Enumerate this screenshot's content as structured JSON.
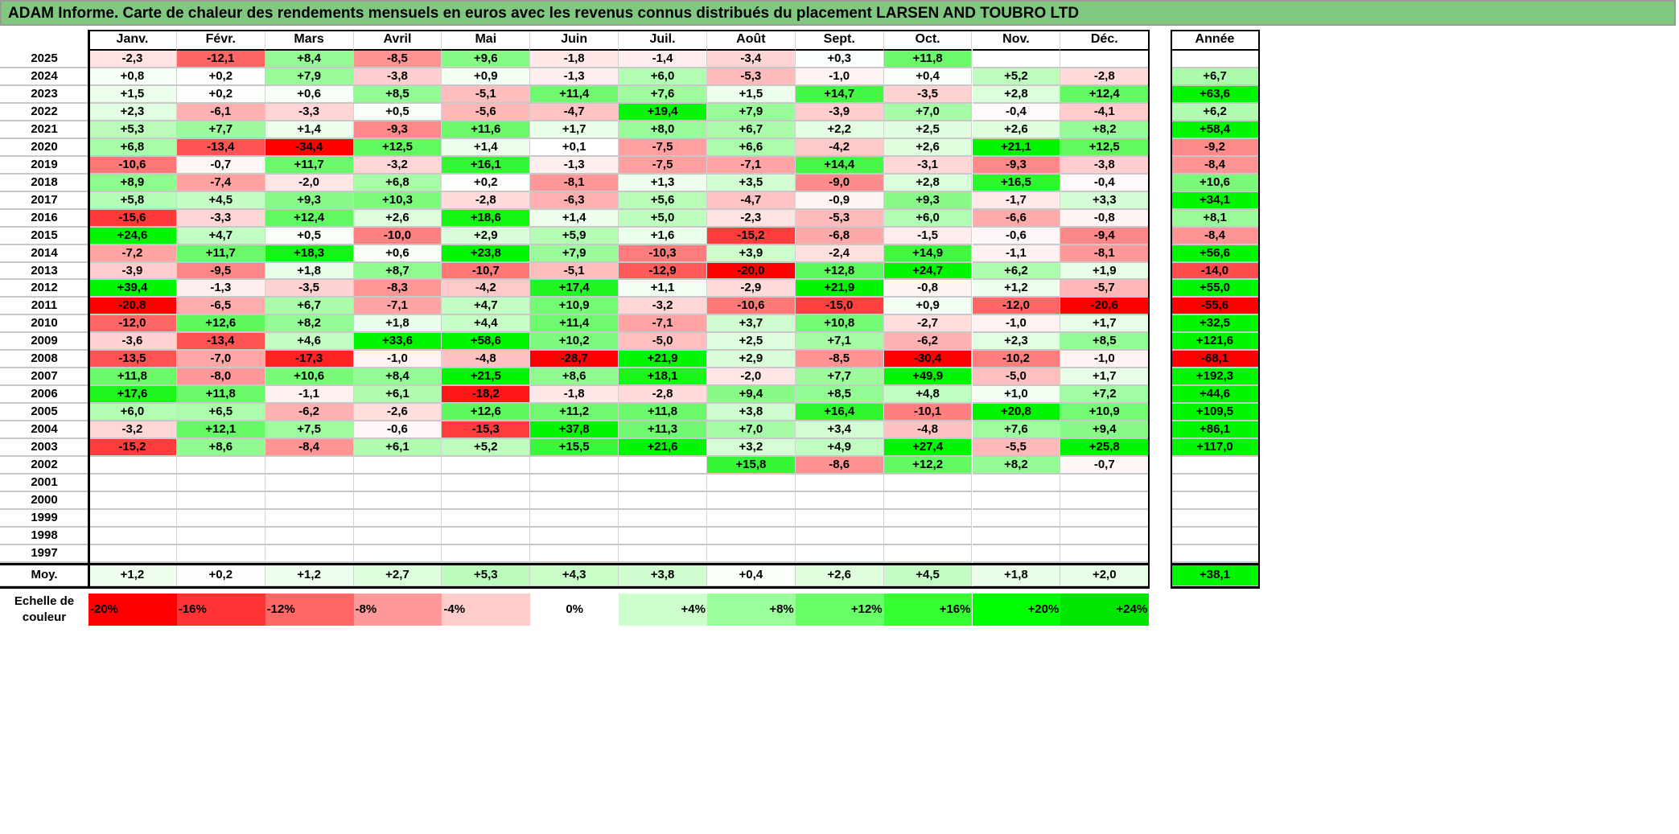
{
  "title": "ADAM Informe. Carte de chaleur des rendements mensuels en euros avec les revenus connus distribués du placement LARSEN AND TOUBRO LTD",
  "chart_data": {
    "type": "heatmap",
    "title": "ADAM Informe. Carte de chaleur des rendements mensuels en euros avec les revenus connus distribués du placement LARSEN AND TOUBRO LTD",
    "months": [
      "Janv.",
      "Févr.",
      "Mars",
      "Avril",
      "Mai",
      "Juin",
      "Juil.",
      "Août",
      "Sept.",
      "Oct.",
      "Nov.",
      "Déc."
    ],
    "annual_header": "Année",
    "rows": [
      {
        "year": "2025",
        "values": [
          "-2,3",
          "-12,1",
          "+8,4",
          "-8,5",
          "+9,6",
          "-1,8",
          "-1,4",
          "-3,4",
          "+0,3",
          "+11,8",
          null,
          null
        ],
        "annual": null
      },
      {
        "year": "2024",
        "values": [
          "+0,8",
          "+0,2",
          "+7,9",
          "-3,8",
          "+0,9",
          "-1,3",
          "+6,0",
          "-5,3",
          "-1,0",
          "+0,4",
          "+5,2",
          "-2,8"
        ],
        "annual": "+6,7"
      },
      {
        "year": "2023",
        "values": [
          "+1,5",
          "+0,2",
          "+0,6",
          "+8,5",
          "-5,1",
          "+11,4",
          "+7,6",
          "+1,5",
          "+14,7",
          "-3,5",
          "+2,8",
          "+12,4"
        ],
        "annual": "+63,6"
      },
      {
        "year": "2022",
        "values": [
          "+2,3",
          "-6,1",
          "-3,3",
          "+0,5",
          "-5,6",
          "-4,7",
          "+19,4",
          "+7,9",
          "-3,9",
          "+7,0",
          "-0,4",
          "-4,1"
        ],
        "annual": "+6,2"
      },
      {
        "year": "2021",
        "values": [
          "+5,3",
          "+7,7",
          "+1,4",
          "-9,3",
          "+11,6",
          "+1,7",
          "+8,0",
          "+6,7",
          "+2,2",
          "+2,5",
          "+2,6",
          "+8,2"
        ],
        "annual": "+58,4"
      },
      {
        "year": "2020",
        "values": [
          "+6,8",
          "-13,4",
          "-34,4",
          "+12,5",
          "+1,4",
          "+0,1",
          "-7,5",
          "+6,6",
          "-4,2",
          "+2,6",
          "+21,1",
          "+12,5"
        ],
        "annual": "-9,2"
      },
      {
        "year": "2019",
        "values": [
          "-10,6",
          "-0,7",
          "+11,7",
          "-3,2",
          "+16,1",
          "-1,3",
          "-7,5",
          "-7,1",
          "+14,4",
          "-3,1",
          "-9,3",
          "-3,8"
        ],
        "annual": "-8,4"
      },
      {
        "year": "2018",
        "values": [
          "+8,9",
          "-7,4",
          "-2,0",
          "+6,8",
          "+0,2",
          "-8,1",
          "+1,3",
          "+3,5",
          "-9,0",
          "+2,8",
          "+16,5",
          "-0,4"
        ],
        "annual": "+10,6"
      },
      {
        "year": "2017",
        "values": [
          "+5,8",
          "+4,5",
          "+9,3",
          "+10,3",
          "-2,8",
          "-6,3",
          "+5,6",
          "-4,7",
          "-0,9",
          "+9,3",
          "-1,7",
          "+3,3"
        ],
        "annual": "+34,1"
      },
      {
        "year": "2016",
        "values": [
          "-15,6",
          "-3,3",
          "+12,4",
          "+2,6",
          "+18,6",
          "+1,4",
          "+5,0",
          "-2,3",
          "-5,3",
          "+6,0",
          "-6,6",
          "-0,8"
        ],
        "annual": "+8,1"
      },
      {
        "year": "2015",
        "values": [
          "+24,6",
          "+4,7",
          "+0,5",
          "-10,0",
          "+2,9",
          "+5,9",
          "+1,6",
          "-15,2",
          "-6,8",
          "-1,5",
          "-0,6",
          "-9,4"
        ],
        "annual": "-8,4"
      },
      {
        "year": "2014",
        "values": [
          "-7,2",
          "+11,7",
          "+18,3",
          "+0,6",
          "+23,8",
          "+7,9",
          "-10,3",
          "+3,9",
          "-2,4",
          "+14,9",
          "-1,1",
          "-8,1"
        ],
        "annual": "+56,6"
      },
      {
        "year": "2013",
        "values": [
          "-3,9",
          "-9,5",
          "+1,8",
          "+8,7",
          "-10,7",
          "-5,1",
          "-12,9",
          "-20,0",
          "+12,8",
          "+24,7",
          "+6,2",
          "+1,9"
        ],
        "annual": "-14,0"
      },
      {
        "year": "2012",
        "values": [
          "+39,4",
          "-1,3",
          "-3,5",
          "-8,3",
          "-4,2",
          "+17,4",
          "+1,1",
          "-2,9",
          "+21,9",
          "-0,8",
          "+1,2",
          "-5,7"
        ],
        "annual": "+55,0"
      },
      {
        "year": "2011",
        "values": [
          "-20,8",
          "-6,5",
          "+6,7",
          "-7,1",
          "+4,7",
          "+10,9",
          "-3,2",
          "-10,6",
          "-15,0",
          "+0,9",
          "-12,0",
          "-20,6"
        ],
        "annual": "-55,6"
      },
      {
        "year": "2010",
        "values": [
          "-12,0",
          "+12,6",
          "+8,2",
          "+1,8",
          "+4,4",
          "+11,4",
          "-7,1",
          "+3,7",
          "+10,8",
          "-2,7",
          "-1,0",
          "+1,7"
        ],
        "annual": "+32,5"
      },
      {
        "year": "2009",
        "values": [
          "-3,6",
          "-13,4",
          "+4,6",
          "+33,6",
          "+58,6",
          "+10,2",
          "-5,0",
          "+2,5",
          "+7,1",
          "-6,2",
          "+2,3",
          "+8,5"
        ],
        "annual": "+121,6"
      },
      {
        "year": "2008",
        "values": [
          "-13,5",
          "-7,0",
          "-17,3",
          "-1,0",
          "-4,8",
          "-28,7",
          "+21,9",
          "+2,9",
          "-8,5",
          "-30,4",
          "-10,2",
          "-1,0"
        ],
        "annual": "-68,1"
      },
      {
        "year": "2007",
        "values": [
          "+11,8",
          "-8,0",
          "+10,6",
          "+8,4",
          "+21,5",
          "+8,6",
          "+18,1",
          "-2,0",
          "+7,7",
          "+49,9",
          "-5,0",
          "+1,7"
        ],
        "annual": "+192,3"
      },
      {
        "year": "2006",
        "values": [
          "+17,6",
          "+11,8",
          "-1,1",
          "+6,1",
          "-18,2",
          "-1,8",
          "-2,8",
          "+9,4",
          "+8,5",
          "+4,8",
          "+1,0",
          "+7,2"
        ],
        "annual": "+44,6"
      },
      {
        "year": "2005",
        "values": [
          "+6,0",
          "+6,5",
          "-6,2",
          "-2,6",
          "+12,6",
          "+11,2",
          "+11,8",
          "+3,8",
          "+16,4",
          "-10,1",
          "+20,8",
          "+10,9"
        ],
        "annual": "+109,5"
      },
      {
        "year": "2004",
        "values": [
          "-3,2",
          "+12,1",
          "+7,5",
          "-0,6",
          "-15,3",
          "+37,8",
          "+11,3",
          "+7,0",
          "+3,4",
          "-4,8",
          "+7,6",
          "+9,4"
        ],
        "annual": "+86,1"
      },
      {
        "year": "2003",
        "values": [
          "-15,2",
          "+8,6",
          "-8,4",
          "+6,1",
          "+5,2",
          "+15,5",
          "+21,6",
          "+3,2",
          "+4,9",
          "+27,4",
          "-5,5",
          "+25,8"
        ],
        "annual": "+117,0"
      },
      {
        "year": "2002",
        "values": [
          null,
          null,
          null,
          null,
          null,
          null,
          null,
          "+15,8",
          "-8,6",
          "+12,2",
          "+8,2",
          "-0,7"
        ],
        "annual": null
      },
      {
        "year": "2001",
        "values": [
          null,
          null,
          null,
          null,
          null,
          null,
          null,
          null,
          null,
          null,
          null,
          null
        ],
        "annual": null
      },
      {
        "year": "2000",
        "values": [
          null,
          null,
          null,
          null,
          null,
          null,
          null,
          null,
          null,
          null,
          null,
          null
        ],
        "annual": null
      },
      {
        "year": "1999",
        "values": [
          null,
          null,
          null,
          null,
          null,
          null,
          null,
          null,
          null,
          null,
          null,
          null
        ],
        "annual": null
      },
      {
        "year": "1998",
        "values": [
          null,
          null,
          null,
          null,
          null,
          null,
          null,
          null,
          null,
          null,
          null,
          null
        ],
        "annual": null
      },
      {
        "year": "1997",
        "values": [
          null,
          null,
          null,
          null,
          null,
          null,
          null,
          null,
          null,
          null,
          null,
          null
        ],
        "annual": null
      }
    ],
    "average": {
      "label": "Moy.",
      "values": [
        "+1,2",
        "+0,2",
        "+1,2",
        "+2,7",
        "+5,3",
        "+4,3",
        "+3,8",
        "+0,4",
        "+2,6",
        "+4,5",
        "+1,8",
        "+2,0"
      ],
      "annual": "+38,1"
    },
    "scale": {
      "label": "Echelle de couleur",
      "steps": [
        {
          "label": "-20%",
          "value": -20,
          "color": "#ff0000"
        },
        {
          "label": "-16%",
          "value": -16,
          "color": "#ff3333"
        },
        {
          "label": "-12%",
          "value": -12,
          "color": "#ff6666"
        },
        {
          "label": "-8%",
          "value": -8,
          "color": "#ff9999"
        },
        {
          "label": "-4%",
          "value": -4,
          "color": "#ffcccc"
        },
        {
          "label": "0%",
          "value": 0,
          "color": "#ffffff"
        },
        {
          "label": "+4%",
          "value": 4,
          "color": "#ccffcc"
        },
        {
          "label": "+8%",
          "value": 8,
          "color": "#99ff99"
        },
        {
          "label": "+12%",
          "value": 12,
          "color": "#66ff66"
        },
        {
          "label": "+16%",
          "value": 16,
          "color": "#33ff33"
        },
        {
          "label": "+20%",
          "value": 20,
          "color": "#00ff00"
        },
        {
          "label": "+24%",
          "value": 24,
          "color": "#00e600"
        }
      ]
    }
  }
}
